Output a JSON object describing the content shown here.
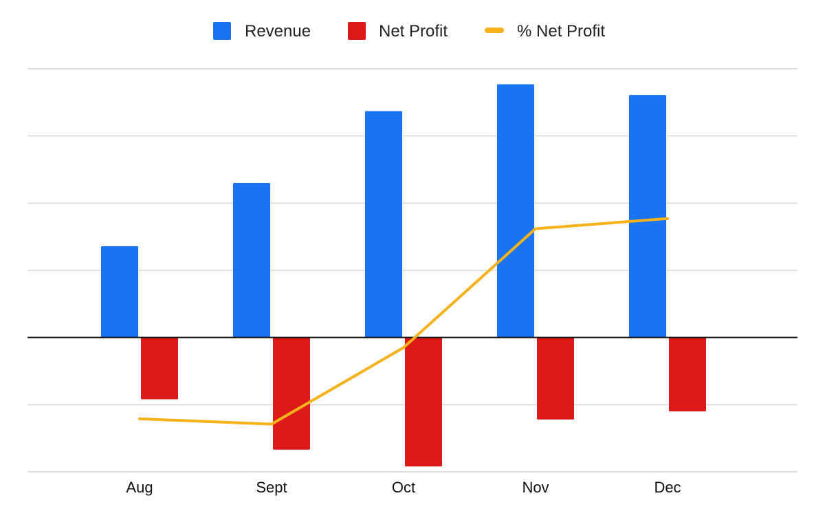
{
  "chart_data": {
    "type": "bar",
    "title": "",
    "xlabel": "",
    "ylabel": "",
    "categories": [
      "Aug",
      "Sept",
      "Oct",
      "Nov",
      "Dec"
    ],
    "ylim": [
      -200,
      400
    ],
    "grid": true,
    "legend_position": "top-center",
    "series": [
      {
        "name": "Revenue",
        "kind": "bar",
        "color": "#1a73f0",
        "values": [
          136,
          230,
          337,
          377,
          361
        ]
      },
      {
        "name": "Net Profit",
        "kind": "bar",
        "color": "#dc1a1a",
        "values": [
          -92,
          -167,
          -192,
          -122,
          -110
        ]
      },
      {
        "name": "% Net Profit",
        "kind": "line",
        "color": "#f6b21b",
        "values": [
          -121,
          -129,
          -15,
          162,
          177
        ]
      }
    ]
  }
}
